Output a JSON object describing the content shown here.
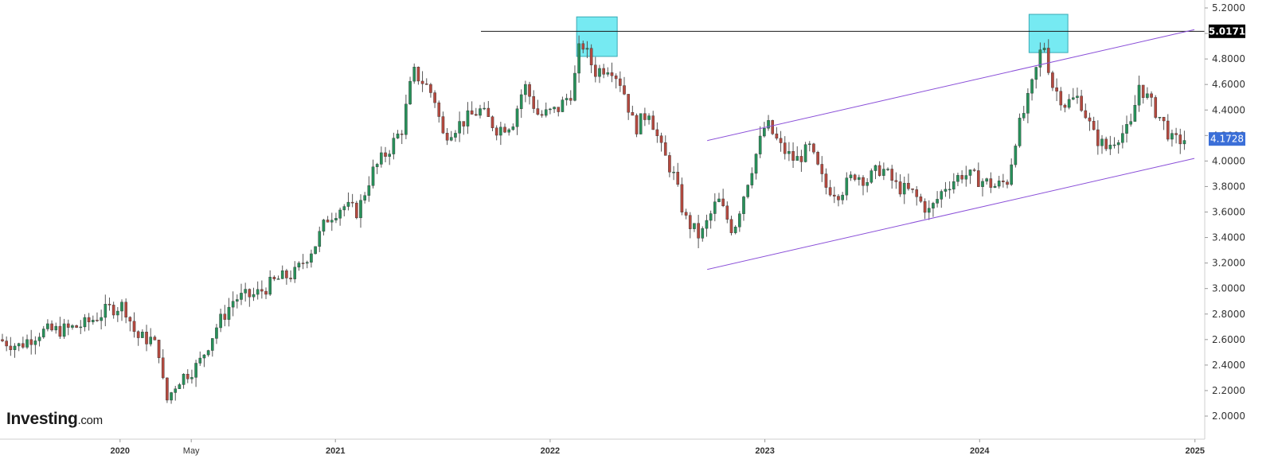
{
  "brand": {
    "name": "Investing",
    "suffix": ".com"
  },
  "price_badges": {
    "resistance": {
      "label": "5.0171",
      "bg": "#000000"
    },
    "last": {
      "label": "4.1728",
      "bg": "#3b6fd8"
    }
  },
  "colors": {
    "up": "#27915a",
    "down": "#b4493f",
    "trendline": "#8a4fd8",
    "highlight_fill": "#5ee6f0",
    "grid": "#eaeaea"
  },
  "chart_data": {
    "type": "candlestick",
    "frequency": "weekly",
    "x_range": [
      "2019-06-15",
      "2024-12-20"
    ],
    "ylim": [
      1.9,
      5.25
    ],
    "y_ticks": [
      "2.0000",
      "2.2000",
      "2.4000",
      "2.6000",
      "2.8000",
      "3.0000",
      "3.2000",
      "3.4000",
      "3.6000",
      "3.8000",
      "4.0000",
      "4.2000",
      "4.4000",
      "4.6000",
      "4.8000",
      "5.0000",
      "5.2000"
    ],
    "x_labels": [
      {
        "label": "2020",
        "date": "2020-01-01",
        "major": true
      },
      {
        "label": "May",
        "date": "2020-05-01",
        "major": false
      },
      {
        "label": "2021",
        "date": "2021-01-01",
        "major": true
      },
      {
        "label": "2022",
        "date": "2022-01-01",
        "major": true
      },
      {
        "label": "2023",
        "date": "2023-01-01",
        "major": true
      },
      {
        "label": "2024",
        "date": "2024-01-01",
        "major": true
      },
      {
        "label": "2025",
        "date": "2025-01-01",
        "major": true
      }
    ],
    "resistance_level": 5.0171,
    "last_price": 4.1728,
    "channel_lines": [
      {
        "from": [
          "2022-09-25",
          4.16
        ],
        "to": [
          "2024-12-31",
          5.03
        ]
      },
      {
        "from": [
          "2022-09-25",
          3.15
        ],
        "to": [
          "2024-12-31",
          4.02
        ]
      }
    ],
    "highlight_boxes": [
      {
        "from": "2022-02-15",
        "to": "2022-04-25",
        "low": 4.82,
        "high": 5.13
      },
      {
        "from": "2024-03-25",
        "to": "2024-05-30",
        "low": 4.85,
        "high": 5.15
      }
    ],
    "series_path": [
      [
        "2019-06-15",
        2.6
      ],
      [
        "2019-07-20",
        2.55
      ],
      [
        "2019-08-25",
        2.66
      ],
      [
        "2019-10-10",
        2.68
      ],
      [
        "2019-11-10",
        2.72
      ],
      [
        "2019-12-20",
        2.84
      ],
      [
        "2020-01-15",
        2.87
      ],
      [
        "2020-02-05",
        2.62
      ],
      [
        "2020-03-01",
        2.6
      ],
      [
        "2020-03-15",
        2.5
      ],
      [
        "2020-03-25",
        2.1
      ],
      [
        "2020-04-15",
        2.28
      ],
      [
        "2020-05-20",
        2.4
      ],
      [
        "2020-06-20",
        2.7
      ],
      [
        "2020-07-20",
        2.92
      ],
      [
        "2020-08-25",
        2.95
      ],
      [
        "2020-10-01",
        3.07
      ],
      [
        "2020-11-01",
        3.12
      ],
      [
        "2020-12-05",
        3.35
      ],
      [
        "2020-12-25",
        3.55
      ],
      [
        "2021-01-20",
        3.65
      ],
      [
        "2021-02-15",
        3.6
      ],
      [
        "2021-03-10",
        3.9
      ],
      [
        "2021-04-10",
        4.1
      ],
      [
        "2021-05-01",
        4.25
      ],
      [
        "2021-05-20",
        4.7
      ],
      [
        "2021-06-10",
        4.6
      ],
      [
        "2021-06-25",
        4.5
      ],
      [
        "2021-07-10",
        4.2
      ],
      [
        "2021-08-10",
        4.3
      ],
      [
        "2021-09-10",
        4.4
      ],
      [
        "2021-10-10",
        4.25
      ],
      [
        "2021-11-05",
        4.3
      ],
      [
        "2021-11-25",
        4.6
      ],
      [
        "2021-12-20",
        4.35
      ],
      [
        "2022-01-20",
        4.4
      ],
      [
        "2022-02-15",
        4.55
      ],
      [
        "2022-03-01",
        4.95
      ],
      [
        "2022-03-25",
        4.7
      ],
      [
        "2022-04-20",
        4.75
      ],
      [
        "2022-05-10",
        4.6
      ],
      [
        "2022-06-01",
        4.25
      ],
      [
        "2022-06-25",
        4.4
      ],
      [
        "2022-07-15",
        4.1
      ],
      [
        "2022-08-05",
        3.9
      ],
      [
        "2022-08-25",
        3.55
      ],
      [
        "2022-09-20",
        3.4
      ],
      [
        "2022-10-20",
        3.7
      ],
      [
        "2022-11-15",
        3.45
      ],
      [
        "2022-12-10",
        3.85
      ],
      [
        "2023-01-10",
        4.3
      ],
      [
        "2023-02-05",
        4.1
      ],
      [
        "2023-03-01",
        4.0
      ],
      [
        "2023-03-25",
        4.1
      ],
      [
        "2023-04-20",
        3.8
      ],
      [
        "2023-05-15",
        3.75
      ],
      [
        "2023-06-10",
        3.9
      ],
      [
        "2023-07-01",
        3.85
      ],
      [
        "2023-07-25",
        3.95
      ],
      [
        "2023-08-20",
        3.8
      ],
      [
        "2023-09-15",
        3.75
      ],
      [
        "2023-10-15",
        3.6
      ],
      [
        "2023-11-10",
        3.8
      ],
      [
        "2023-12-10",
        3.9
      ],
      [
        "2024-01-10",
        3.85
      ],
      [
        "2024-02-05",
        3.8
      ],
      [
        "2024-02-25",
        3.85
      ],
      [
        "2024-03-10",
        4.2
      ],
      [
        "2024-04-01",
        4.5
      ],
      [
        "2024-04-15",
        4.75
      ],
      [
        "2024-04-25",
        4.95
      ],
      [
        "2024-05-10",
        4.6
      ],
      [
        "2024-06-01",
        4.45
      ],
      [
        "2024-06-25",
        4.5
      ],
      [
        "2024-07-20",
        4.2
      ],
      [
        "2024-08-10",
        4.1
      ],
      [
        "2024-08-30",
        4.2
      ],
      [
        "2024-09-20",
        4.25
      ],
      [
        "2024-10-05",
        4.6
      ],
      [
        "2024-10-25",
        4.45
      ],
      [
        "2024-11-15",
        4.3
      ],
      [
        "2024-12-01",
        4.15
      ],
      [
        "2024-12-20",
        4.17
      ]
    ]
  }
}
